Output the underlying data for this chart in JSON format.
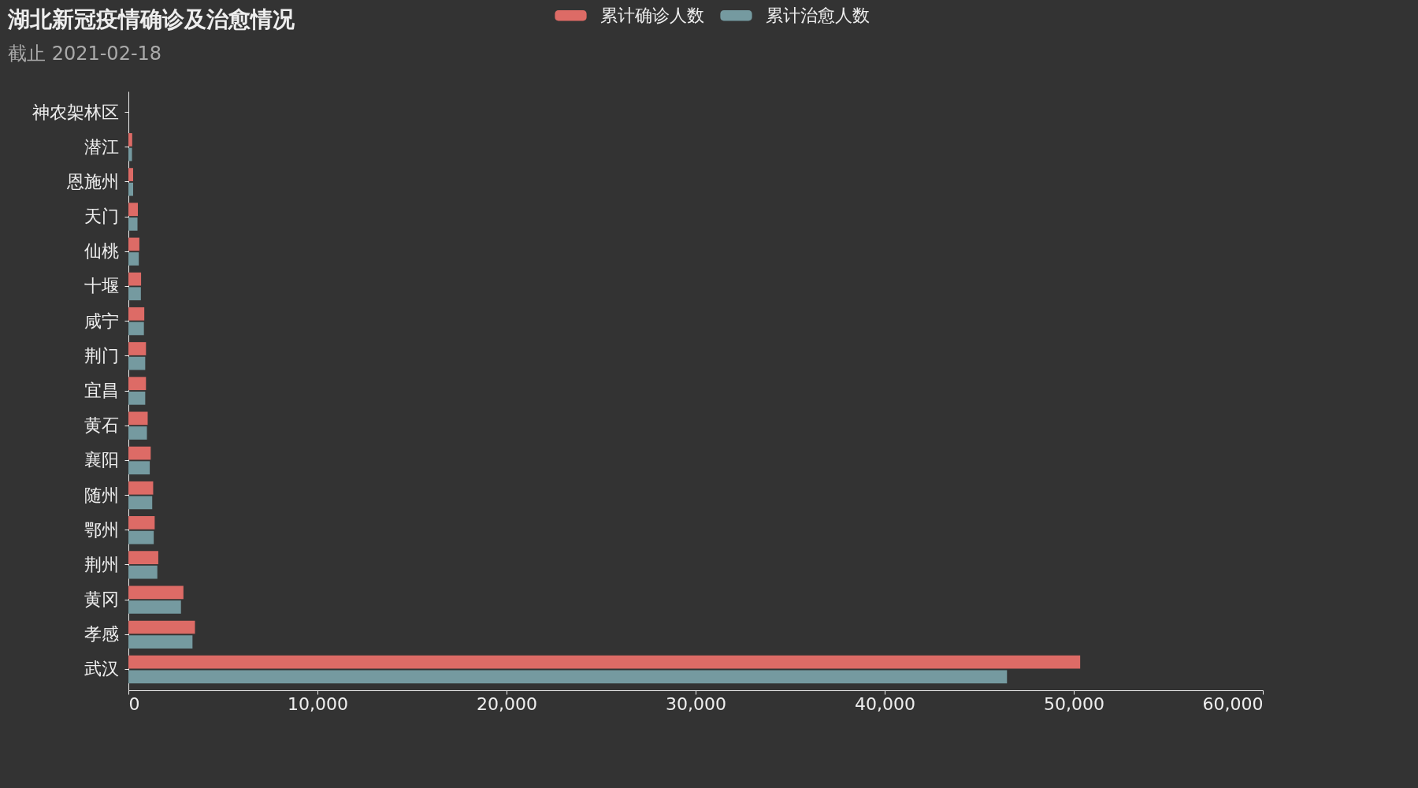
{
  "chart_data": {
    "type": "bar",
    "orientation": "horizontal",
    "title": "湖北新冠疫情确诊及治愈情况",
    "subtitle": "截止 2021-02-18",
    "categories": [
      "神农架林区",
      "潜江",
      "恩施州",
      "天门",
      "仙桃",
      "十堰",
      "咸宁",
      "荆门",
      "宜昌",
      "黄石",
      "襄阳",
      "随州",
      "鄂州",
      "荆州",
      "黄冈",
      "孝感",
      "武汉"
    ],
    "series": [
      {
        "name": "累计确诊人数",
        "color": "#dd6b66",
        "values": [
          null,
          200,
          250,
          500,
          580,
          670,
          840,
          930,
          930,
          1020,
          1180,
          1310,
          1390,
          1580,
          2910,
          3520,
          50340
        ]
      },
      {
        "name": "累计治愈人数",
        "color": "#759aa0",
        "values": [
          null,
          190,
          250,
          480,
          550,
          660,
          820,
          890,
          890,
          980,
          1130,
          1260,
          1340,
          1530,
          2780,
          3390,
          46470
        ]
      }
    ],
    "xlim": [
      0,
      60000
    ],
    "xticks": [
      0,
      {
        "value": 10000,
        "label": "10,000"
      },
      {
        "value": 20000,
        "label": "20,000"
      },
      {
        "value": 30000,
        "label": "30,000"
      },
      {
        "value": 40000,
        "label": "40,000"
      },
      {
        "value": 50000,
        "label": "50,000"
      },
      {
        "value": 60000,
        "label": "60,000"
      }
    ],
    "grid": false,
    "legend": "top"
  }
}
